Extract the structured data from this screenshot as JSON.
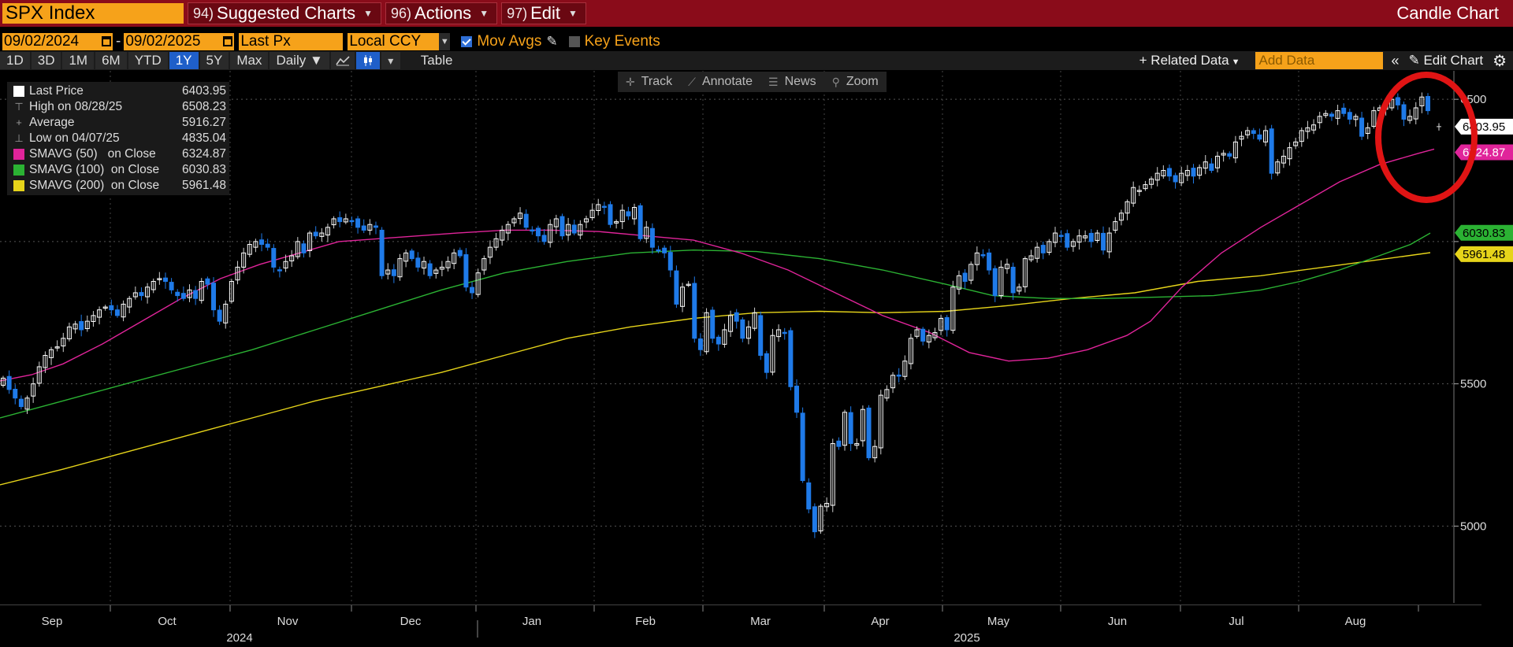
{
  "title_bar": {
    "ticker": "SPX Index",
    "menus": [
      {
        "num": "94)",
        "label": "Suggested Charts"
      },
      {
        "num": "96)",
        "label": "Actions"
      },
      {
        "num": "97)",
        "label": "Edit"
      }
    ],
    "chart_name": "Candle Chart"
  },
  "params": {
    "start_date": "09/02/2024",
    "end_date": "09/02/2025",
    "field": "Last Px",
    "currency": "Local CCY",
    "mov_avgs_label": "Mov Avgs",
    "key_events_label": "Key Events"
  },
  "toolbar": {
    "periods": [
      "1D",
      "3D",
      "1M",
      "6M",
      "YTD",
      "1Y",
      "5Y",
      "Max"
    ],
    "active_period": "1Y",
    "frequency": "Daily",
    "table_label": "Table",
    "related_data": "Related Data",
    "add_data_placeholder": "Add Data",
    "edit_chart": "Edit Chart"
  },
  "tools": {
    "track": "Track",
    "annotate": "Annotate",
    "news": "News",
    "zoom": "Zoom"
  },
  "legend": [
    {
      "label": "Last Price",
      "value": "6403.95",
      "color": "#ffffff"
    },
    {
      "label": "High on 08/28/25",
      "value": "6508.23",
      "color": "#999999"
    },
    {
      "label": "Average",
      "value": "5916.27",
      "color": "#999999"
    },
    {
      "label": "Low on 04/07/25",
      "value": "4835.04",
      "color": "#999999"
    },
    {
      "label": "SMAVG (50)   on Close",
      "value": "6324.87",
      "color": "#e0249a"
    },
    {
      "label": "SMAVG (100)  on Close",
      "value": "6030.83",
      "color": "#2bb233"
    },
    {
      "label": "SMAVG (200)  on Close",
      "value": "5961.48",
      "color": "#e6d41a"
    }
  ],
  "chart_data": {
    "type": "candlestick",
    "ylim": [
      4730,
      6600
    ],
    "y_ticks": [
      5000,
      5500,
      6000,
      6500
    ],
    "y_tick_labels": [
      "5000",
      "5500",
      "",
      "6500"
    ],
    "grid": true,
    "months": [
      "Sep",
      "Oct",
      "Nov",
      "Dec",
      "Jan",
      "Feb",
      "Mar",
      "Apr",
      "May",
      "Jun",
      "Jul",
      "Aug"
    ],
    "years": [
      "2024",
      "2025"
    ],
    "closes": [
      5520,
      5480,
      5450,
      5420,
      5450,
      5500,
      5560,
      5600,
      5620,
      5630,
      5660,
      5700,
      5710,
      5690,
      5720,
      5740,
      5760,
      5770,
      5760,
      5740,
      5780,
      5800,
      5820,
      5810,
      5840,
      5860,
      5870,
      5860,
      5830,
      5810,
      5800,
      5830,
      5800,
      5860,
      5850,
      5760,
      5720,
      5780,
      5860,
      5910,
      5960,
      5990,
      6000,
      5990,
      5980,
      5910,
      5900,
      5930,
      5950,
      6000,
      5960,
      6030,
      6020,
      6030,
      6050,
      6080,
      6070,
      6080,
      6070,
      6050,
      6040,
      6060,
      6050,
      5880,
      5900,
      5880,
      5940,
      5960,
      5940,
      5910,
      5930,
      5880,
      5900,
      5910,
      5930,
      5960,
      5950,
      5840,
      5820,
      5890,
      5940,
      5980,
      6010,
      6040,
      6060,
      6080,
      6100,
      6050,
      6040,
      6020,
      6000,
      6060,
      6080,
      6020,
      6060,
      6030,
      6060,
      6080,
      6110,
      6130,
      6120,
      6060,
      6070,
      6110,
      6090,
      6120,
      6010,
      6050,
      5980,
      5970,
      5960,
      5900,
      5780,
      5840,
      5850,
      5660,
      5620,
      5750,
      5660,
      5640,
      5690,
      5740,
      5720,
      5660,
      5700,
      5750,
      5600,
      5540,
      5670,
      5690,
      5680,
      5490,
      5400,
      5160,
      5060,
      4980,
      5070,
      5080,
      5290,
      5280,
      5400,
      5290,
      5290,
      5410,
      5240,
      5280,
      5460,
      5480,
      5530,
      5530,
      5580,
      5660,
      5690,
      5650,
      5670,
      5680,
      5730,
      5690,
      5840,
      5880,
      5860,
      5920,
      5960,
      5950,
      5900,
      5810,
      5910,
      5920,
      5820,
      5840,
      5940,
      5950,
      5980,
      5960,
      6000,
      6030,
      6020,
      5980,
      6000,
      6020,
      6020,
      6000,
      6030,
      5970,
      6030,
      6070,
      6100,
      6140,
      6190,
      6180,
      6200,
      6220,
      6240,
      6250,
      6230,
      6210,
      6240,
      6250,
      6230,
      6260,
      6280,
      6250,
      6300,
      6310,
      6300,
      6350,
      6370,
      6390,
      6380,
      6360,
      6390,
      6240,
      6280,
      6300,
      6330,
      6350,
      6390,
      6400,
      6410,
      6440,
      6450,
      6440,
      6460,
      6450,
      6430,
      6440,
      6370,
      6400,
      6460,
      6470,
      6480,
      6500,
      6480,
      6430,
      6440,
      6470,
      6508,
      6460
    ],
    "last_close": 6403.95,
    "sma50": [
      [
        0,
        5510
      ],
      [
        40,
        5532
      ],
      [
        80,
        5570
      ],
      [
        130,
        5640
      ],
      [
        180,
        5720
      ],
      [
        230,
        5800
      ],
      [
        280,
        5870
      ],
      [
        330,
        5920
      ],
      [
        380,
        5960
      ],
      [
        430,
        6000
      ],
      [
        480,
        6010
      ],
      [
        530,
        6020
      ],
      [
        580,
        6030
      ],
      [
        640,
        6040
      ],
      [
        700,
        6040
      ],
      [
        760,
        6035
      ],
      [
        820,
        6020
      ],
      [
        880,
        6005
      ],
      [
        940,
        5960
      ],
      [
        1000,
        5900
      ],
      [
        1060,
        5820
      ],
      [
        1120,
        5740
      ],
      [
        1180,
        5680
      ],
      [
        1230,
        5610
      ],
      [
        1280,
        5580
      ],
      [
        1330,
        5590
      ],
      [
        1380,
        5620
      ],
      [
        1430,
        5670
      ],
      [
        1460,
        5720
      ],
      [
        1500,
        5840
      ],
      [
        1550,
        5960
      ],
      [
        1600,
        6050
      ],
      [
        1650,
        6130
      ],
      [
        1700,
        6210
      ],
      [
        1750,
        6270
      ],
      [
        1800,
        6310
      ],
      [
        1820,
        6325
      ]
    ],
    "sma100": [
      [
        0,
        5380
      ],
      [
        80,
        5440
      ],
      [
        160,
        5500
      ],
      [
        240,
        5560
      ],
      [
        320,
        5620
      ],
      [
        400,
        5690
      ],
      [
        480,
        5760
      ],
      [
        560,
        5830
      ],
      [
        640,
        5890
      ],
      [
        720,
        5930
      ],
      [
        800,
        5960
      ],
      [
        880,
        5970
      ],
      [
        960,
        5965
      ],
      [
        1040,
        5940
      ],
      [
        1120,
        5900
      ],
      [
        1200,
        5850
      ],
      [
        1260,
        5810
      ],
      [
        1330,
        5800
      ],
      [
        1400,
        5800
      ],
      [
        1470,
        5805
      ],
      [
        1540,
        5810
      ],
      [
        1600,
        5830
      ],
      [
        1650,
        5860
      ],
      [
        1700,
        5900
      ],
      [
        1750,
        5950
      ],
      [
        1790,
        5990
      ],
      [
        1815,
        6030
      ]
    ],
    "sma200": [
      [
        0,
        5145
      ],
      [
        80,
        5200
      ],
      [
        160,
        5260
      ],
      [
        240,
        5320
      ],
      [
        320,
        5380
      ],
      [
        400,
        5440
      ],
      [
        480,
        5490
      ],
      [
        560,
        5540
      ],
      [
        640,
        5600
      ],
      [
        720,
        5660
      ],
      [
        800,
        5700
      ],
      [
        880,
        5730
      ],
      [
        960,
        5750
      ],
      [
        1040,
        5755
      ],
      [
        1120,
        5750
      ],
      [
        1200,
        5755
      ],
      [
        1280,
        5775
      ],
      [
        1360,
        5800
      ],
      [
        1440,
        5820
      ],
      [
        1520,
        5860
      ],
      [
        1600,
        5880
      ],
      [
        1680,
        5910
      ],
      [
        1760,
        5940
      ],
      [
        1815,
        5961
      ]
    ],
    "tags": [
      {
        "value": "6403.95",
        "bg": "#ffffff",
        "fg": "#000000"
      },
      {
        "value": "6324.87",
        "bg": "#e0249a",
        "fg": "#ffffff"
      },
      {
        "value": "6030.83",
        "bg": "#2bb233",
        "fg": "#000000"
      },
      {
        "value": "5961.48",
        "bg": "#e6d41a",
        "fg": "#000000"
      }
    ]
  }
}
